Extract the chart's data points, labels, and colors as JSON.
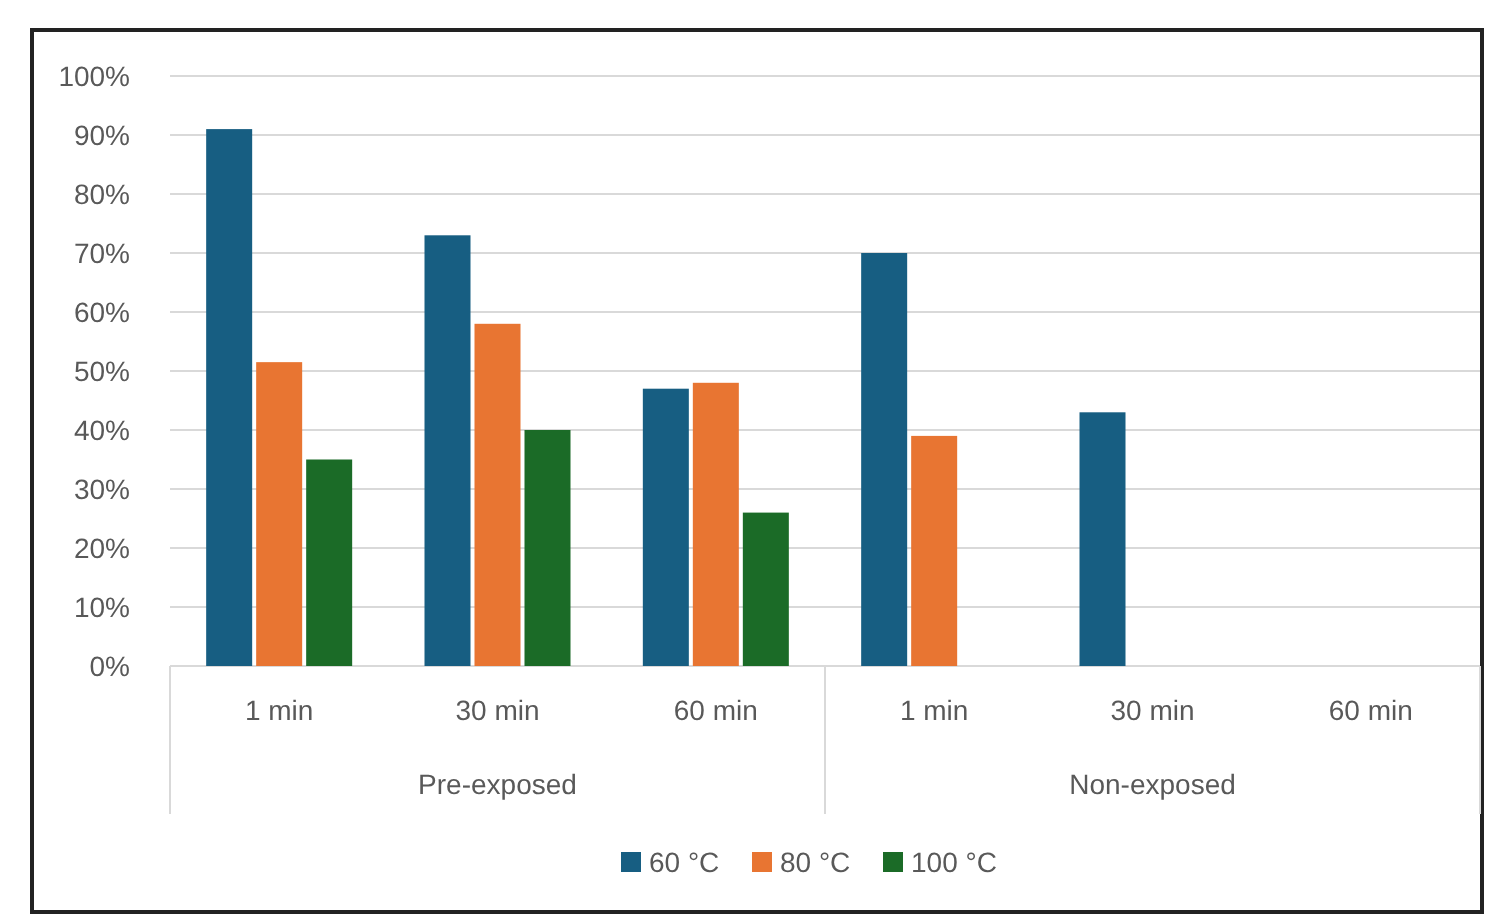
{
  "chart_data": {
    "type": "bar",
    "categories": [
      "1 min",
      "30 min",
      "60 min",
      "1 min",
      "30 min",
      "60 min"
    ],
    "series": [
      {
        "name": "60 °C",
        "color": "#175e82",
        "values": [
          91,
          73,
          47,
          70,
          43,
          null
        ]
      },
      {
        "name": "80 °C",
        "color": "#e87532",
        "values": [
          51.5,
          58,
          48,
          39,
          null,
          null
        ]
      },
      {
        "name": "100 °C",
        "color": "#1b6b27",
        "values": [
          35,
          40,
          26,
          null,
          null,
          null
        ]
      }
    ],
    "ylim": [
      0,
      100
    ],
    "yticks": [
      {
        "value": 0,
        "label": "0%"
      },
      {
        "value": 10,
        "label": "10%"
      },
      {
        "value": 20,
        "label": "20%"
      },
      {
        "value": 30,
        "label": "30%"
      },
      {
        "value": 40,
        "label": "40%"
      },
      {
        "value": 50,
        "label": "50%"
      },
      {
        "value": 60,
        "label": "60%"
      },
      {
        "value": 70,
        "label": "70%"
      },
      {
        "value": 80,
        "label": "80%"
      },
      {
        "value": 90,
        "label": "90%"
      },
      {
        "value": 100,
        "label": "100%"
      }
    ],
    "annotations": [
      "Pre-exposed",
      "Non-exposed"
    ],
    "grid": "y",
    "legend": "bottom"
  }
}
